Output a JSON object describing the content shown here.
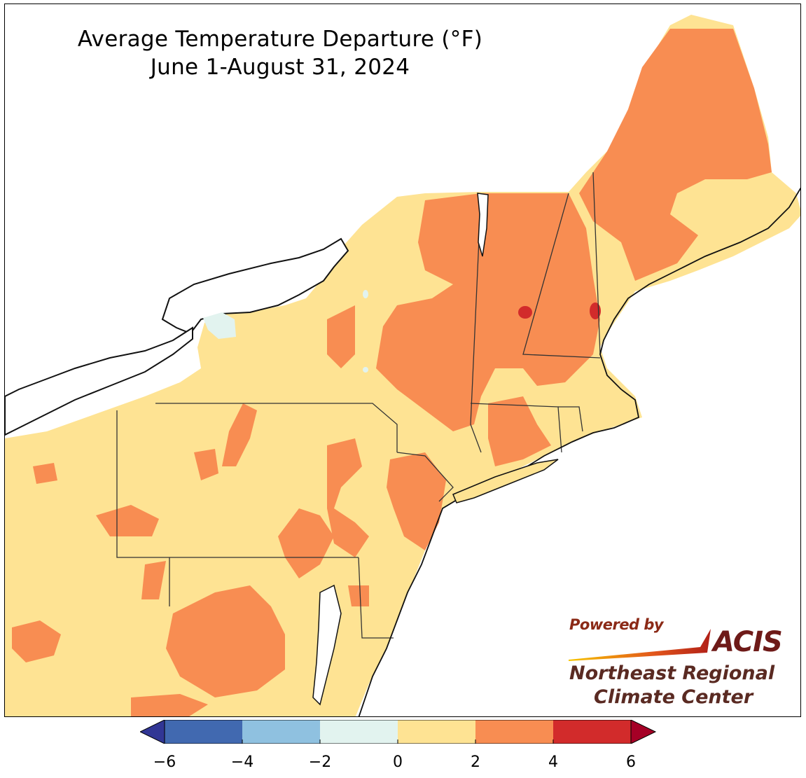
{
  "title": {
    "line1": "Average Temperature Departure (°F)",
    "line2": "June 1-August 31, 2024"
  },
  "logo": {
    "powered_by": "Powered by",
    "brand": "ACIS",
    "org_line1": "Northeast Regional",
    "org_line2": "Climate Center"
  },
  "legend": {
    "ticks": [
      "−6",
      "−4",
      "−2",
      "0",
      "2",
      "4",
      "6"
    ],
    "bins": [
      {
        "from": -6,
        "to": -4,
        "color": "#4169b0"
      },
      {
        "from": -4,
        "to": -2,
        "color": "#8fc1e0"
      },
      {
        "from": -2,
        "to": 0,
        "color": "#e2f3ef"
      },
      {
        "from": 0,
        "to": 2,
        "color": "#fee393"
      },
      {
        "from": 2,
        "to": 4,
        "color": "#f88d52"
      },
      {
        "from": 4,
        "to": 6,
        "color": "#d22b2b"
      }
    ],
    "under_color": "#313695",
    "over_color": "#a50026"
  },
  "colors": {
    "land_base": "#fee393",
    "warm": "#f88d52",
    "hot": "#d22b2b",
    "cool": "#e2f3ef",
    "water": "#ffffff"
  }
}
